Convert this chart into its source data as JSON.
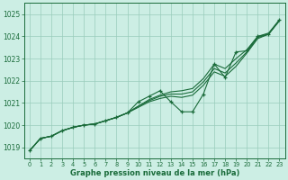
{
  "title": "Graphe pression niveau de la mer (hPa)",
  "bg_color": "#cceee4",
  "grid_color": "#99ccbb",
  "line_color": "#1a6b3a",
  "xlim_min": -0.5,
  "xlim_max": 23.5,
  "ylim_min": 1018.5,
  "ylim_max": 1025.5,
  "yticks": [
    1019,
    1020,
    1021,
    1022,
    1023,
    1024,
    1025
  ],
  "xticks": [
    0,
    1,
    2,
    3,
    4,
    5,
    6,
    7,
    8,
    9,
    10,
    11,
    12,
    13,
    14,
    15,
    16,
    17,
    18,
    19,
    20,
    21,
    22,
    23
  ],
  "hours": [
    0,
    1,
    2,
    3,
    4,
    5,
    6,
    7,
    8,
    9,
    10,
    11,
    12,
    13,
    14,
    15,
    16,
    17,
    18,
    19,
    20,
    21,
    22,
    23
  ],
  "line_top": [
    1018.85,
    1019.4,
    1019.5,
    1019.75,
    1019.9,
    1020.0,
    1020.05,
    1020.2,
    1020.35,
    1020.55,
    1020.85,
    1021.15,
    1021.35,
    1021.5,
    1021.55,
    1021.65,
    1022.1,
    1022.75,
    1022.55,
    1023.0,
    1023.4,
    1024.0,
    1024.15,
    1024.75
  ],
  "line_mid": [
    1018.85,
    1019.4,
    1019.5,
    1019.75,
    1019.9,
    1020.0,
    1020.05,
    1020.2,
    1020.35,
    1020.55,
    1020.85,
    1021.1,
    1021.3,
    1021.4,
    1021.4,
    1021.5,
    1021.95,
    1022.55,
    1022.35,
    1022.8,
    1023.3,
    1023.95,
    1024.1,
    1024.72
  ],
  "line_bot": [
    1018.85,
    1019.4,
    1019.5,
    1019.75,
    1019.9,
    1020.0,
    1020.05,
    1020.2,
    1020.35,
    1020.55,
    1020.8,
    1021.05,
    1021.2,
    1021.3,
    1021.25,
    1021.35,
    1021.8,
    1022.4,
    1022.2,
    1022.65,
    1023.25,
    1023.9,
    1024.1,
    1024.7
  ],
  "line_jagged": [
    1018.85,
    1019.4,
    1019.5,
    1019.75,
    1019.9,
    1020.0,
    1020.05,
    1020.2,
    1020.35,
    1020.55,
    1021.05,
    1021.3,
    1021.55,
    1021.05,
    1020.6,
    1020.6,
    1021.4,
    1022.75,
    1022.15,
    1023.3,
    1023.35,
    1024.0,
    1024.1,
    1024.75
  ]
}
